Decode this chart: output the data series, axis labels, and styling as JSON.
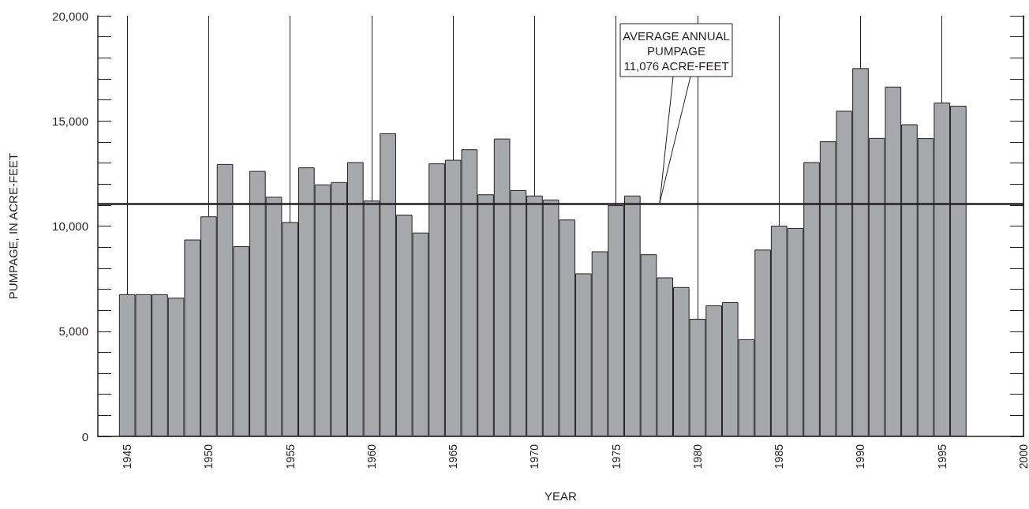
{
  "chart_data": {
    "type": "bar",
    "xlabel": "YEAR",
    "ylabel": "PUMPAGE, IN ACRE-FEET",
    "color": "#a7a8ab",
    "grid": "x",
    "x": [
      1945,
      1946,
      1947,
      1948,
      1949,
      1950,
      1951,
      1952,
      1953,
      1954,
      1955,
      1956,
      1957,
      1958,
      1959,
      1960,
      1961,
      1962,
      1963,
      1964,
      1965,
      1966,
      1967,
      1968,
      1969,
      1970,
      1971,
      1972,
      1973,
      1974,
      1975,
      1976,
      1977,
      1978,
      1979,
      1980,
      1981,
      1982,
      1983,
      1984,
      1985,
      1986,
      1987,
      1988,
      1989,
      1990,
      1991,
      1992,
      1993,
      1994,
      1995,
      1996
    ],
    "values": [
      6760,
      6760,
      6760,
      6590,
      9360,
      10460,
      12950,
      9040,
      12620,
      11390,
      10190,
      12790,
      11980,
      12090,
      13040,
      11210,
      14410,
      10540,
      9690,
      12980,
      13150,
      13650,
      11510,
      14160,
      11710,
      11450,
      11260,
      10310,
      7750,
      8800,
      10990,
      11450,
      8660,
      7560,
      7100,
      5590,
      6230,
      6380,
      4620,
      8880,
      10020,
      9910,
      13040,
      14030,
      15480,
      17510,
      14190,
      16630,
      14840,
      14180,
      15870,
      15720
    ],
    "xlim": [
      1943.2,
      2000
    ],
    "xticks": [
      1945,
      1950,
      1955,
      1960,
      1965,
      1970,
      1975,
      1980,
      1985,
      1990,
      1995,
      2000
    ],
    "ylim": [
      0,
      20000
    ],
    "yticks": [
      0,
      {
        "value": 5000,
        "label": "5,000"
      },
      {
        "value": 10000,
        "label": "10,000"
      },
      {
        "value": 15000,
        "label": "15,000"
      },
      {
        "value": 20000,
        "label": "20,000"
      }
    ],
    "ref_lines": [
      {
        "axis": "y",
        "value": 11076,
        "label": "AVERAGE ANNUAL\nPUMPAGE\n11,076 ACRE-FEET",
        "color": "#231f20"
      }
    ]
  }
}
